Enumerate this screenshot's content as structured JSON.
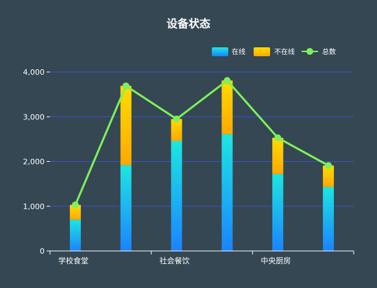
{
  "chart_data": {
    "type": "bar",
    "title": "设备状态",
    "categories": [
      "学校食堂",
      "",
      "社会餐饮",
      "",
      "中央厨房",
      ""
    ],
    "series": [
      {
        "name": "在线",
        "kind": "bar",
        "stack": "total",
        "values": [
          700,
          1920,
          2460,
          2610,
          1720,
          1430
        ]
      },
      {
        "name": "不在线",
        "kind": "bar",
        "stack": "total",
        "values": [
          330,
          1770,
          490,
          1200,
          810,
          480
        ]
      },
      {
        "name": "总数",
        "kind": "line",
        "values": [
          1030,
          3690,
          2950,
          3810,
          2530,
          1910
        ]
      }
    ],
    "ylim": [
      0,
      4000
    ],
    "yticks": [
      "0",
      "1,000",
      "2,000",
      "3,000",
      "4,000"
    ],
    "grid": true,
    "legend": "top-right",
    "colors": {
      "online_top": "#1de6e0",
      "online_bottom": "#1a84ff",
      "offline_top": "#ffdc00",
      "offline_bottom": "#ffa800",
      "line": "#7ff05a",
      "grid": "#3f52c7",
      "axis": "#ffffff"
    }
  }
}
